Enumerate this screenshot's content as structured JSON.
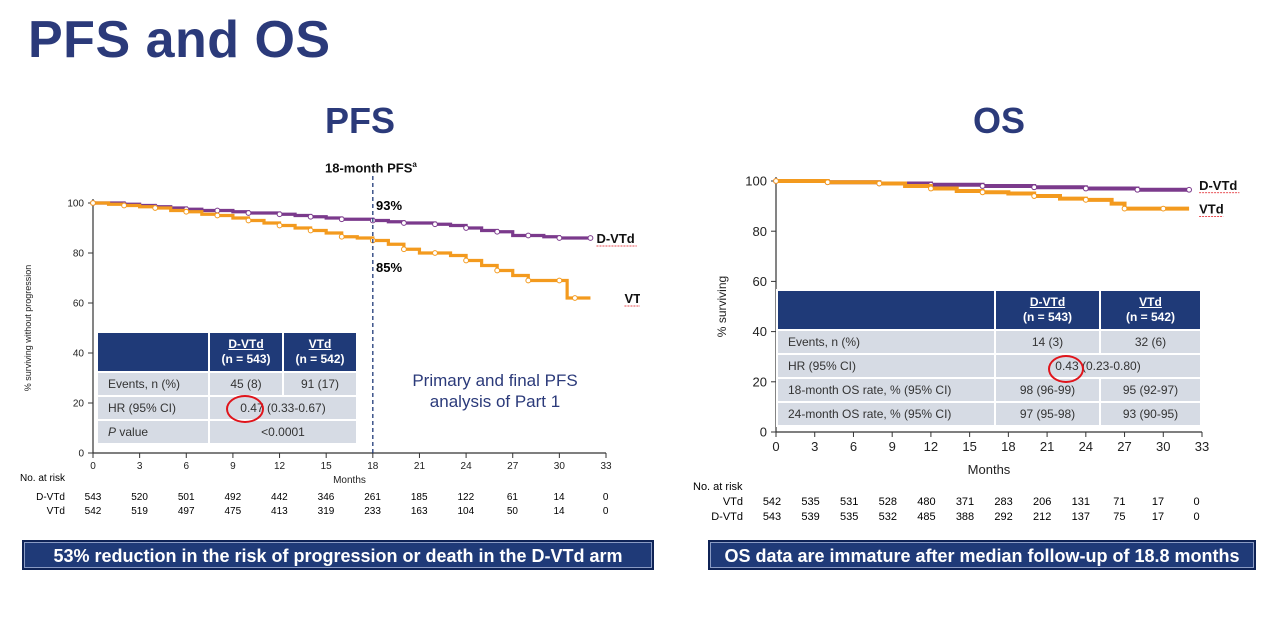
{
  "slide_title": "PFS and OS",
  "banners": {
    "pfs": "53% reduction in the risk of progression or death in the D-VTd arm",
    "os": "OS data are immature after median follow-up of 18.8 months"
  },
  "colors": {
    "navy": "#1f3a78",
    "purple": "#7b3a8c",
    "orange": "#f39a1e",
    "dashed": "#1f3a78",
    "highlight": "#e0141b"
  },
  "pfs": {
    "title": "PFS",
    "note_line1": "Primary and final PFS",
    "note_line2": "analysis of Part 1",
    "marker": {
      "label": "18-month PFS",
      "superscript": "a",
      "dvtd_rate": "93%",
      "vtd_rate": "85%"
    },
    "table": {
      "col1_header1": "D-VTd",
      "col1_header2": "(n = 543)",
      "col2_header1": "VTd",
      "col2_header2": "(n = 542)",
      "rows": [
        {
          "label": "Events, n (%)",
          "c1": "45 (8)",
          "c2": "91 (17)"
        },
        {
          "label": "HR (95% CI)",
          "hr": "0.47",
          "ci": " (0.33-0.67)"
        }
      ],
      "pvalue_label_italic": "P",
      "pvalue_label_rest": " value",
      "pvalue": "<0.0001"
    },
    "risk": {
      "header": "No. at risk",
      "rows": [
        {
          "arm": "D-VTd",
          "counts": [
            "543",
            "520",
            "501",
            "492",
            "442",
            "346",
            "261",
            "185",
            "122",
            "61",
            "14",
            "0"
          ]
        },
        {
          "arm": "VTd",
          "counts": [
            "542",
            "519",
            "497",
            "475",
            "413",
            "319",
            "233",
            "163",
            "104",
            "50",
            "14",
            "0"
          ]
        }
      ]
    }
  },
  "os": {
    "title": "OS",
    "table": {
      "col1_header1": "D-VTd",
      "col1_header2": "(n = 543)",
      "col2_header1": "VTd",
      "col2_header2": "(n = 542)",
      "rows": [
        {
          "label": "Events, n (%)",
          "c1": "14 (3)",
          "c2": "32 (6)"
        },
        {
          "label": "HR (95% CI)",
          "hr": "0.43",
          "ci": " (0.23-0.80)"
        },
        {
          "label": "18-month OS rate, % (95% CI)",
          "c1": "98 (96-99)",
          "c2": "95 (92-97)"
        },
        {
          "label": "24-month OS rate, % (95% CI)",
          "c1": "97 (95-98)",
          "c2": "93 (90-95)"
        }
      ]
    },
    "risk": {
      "header": "No. at risk",
      "rows": [
        {
          "arm": "VTd",
          "counts": [
            "542",
            "535",
            "531",
            "528",
            "480",
            "371",
            "283",
            "206",
            "131",
            "71",
            "17",
            "0"
          ]
        },
        {
          "arm": "D-VTd",
          "counts": [
            "543",
            "539",
            "535",
            "532",
            "485",
            "388",
            "292",
            "212",
            "137",
            "75",
            "17",
            "0"
          ]
        }
      ]
    }
  },
  "chart_data": [
    {
      "type": "line",
      "title": "PFS",
      "xlabel": "Months",
      "ylabel": "% surviving without progression",
      "xlim": [
        0,
        33
      ],
      "ylim": [
        0,
        100
      ],
      "xticks": [
        "0",
        "3",
        "6",
        "9",
        "12",
        "15",
        "18",
        "21",
        "24",
        "27",
        "30",
        "33"
      ],
      "yticks": [
        "0",
        "20",
        "40",
        "60",
        "80",
        "100"
      ],
      "series": [
        {
          "name": "D-VTd",
          "x": [
            0,
            1,
            2,
            3,
            4,
            5,
            6,
            7,
            8,
            9,
            10,
            11,
            12,
            13,
            14,
            15,
            16,
            17,
            18,
            19,
            20,
            21,
            22,
            23,
            24,
            25,
            26,
            27,
            28,
            29,
            30,
            31,
            32
          ],
          "y": [
            100,
            100,
            99.5,
            99,
            98.5,
            98,
            97.5,
            97,
            97,
            96.5,
            96,
            96,
            95.5,
            95,
            94.5,
            94,
            93.5,
            93.5,
            93,
            92.5,
            92,
            92,
            91.5,
            91,
            90,
            89,
            88.5,
            87,
            87,
            86.5,
            86,
            86,
            86
          ]
        },
        {
          "name": "VTd",
          "x": [
            0,
            1,
            2,
            3,
            4,
            5,
            6,
            7,
            8,
            9,
            10,
            11,
            12,
            13,
            14,
            15,
            16,
            17,
            18,
            19,
            20,
            21,
            22,
            23,
            24,
            25,
            26,
            27,
            28,
            29,
            30,
            30.5,
            31,
            32
          ],
          "y": [
            100,
            99.5,
            99,
            98.5,
            98,
            97,
            96.5,
            95.5,
            95,
            94,
            93,
            92,
            91,
            90,
            89,
            88,
            86.5,
            86,
            85,
            83.5,
            81.5,
            80,
            80,
            79,
            77,
            75,
            73,
            71,
            69,
            69,
            69,
            62,
            62,
            62
          ]
        }
      ]
    },
    {
      "type": "line",
      "title": "OS",
      "xlabel": "Months",
      "ylabel": "% surviving",
      "xlim": [
        0,
        33
      ],
      "ylim": [
        0,
        100
      ],
      "xticks": [
        "0",
        "3",
        "6",
        "9",
        "12",
        "15",
        "18",
        "21",
        "24",
        "27",
        "30",
        "33"
      ],
      "yticks": [
        "0",
        "20",
        "40",
        "60",
        "80",
        "100"
      ],
      "series": [
        {
          "name": "D-VTd",
          "x": [
            0,
            2,
            4,
            6,
            8,
            10,
            12,
            14,
            16,
            18,
            20,
            22,
            24,
            26,
            28,
            30,
            32
          ],
          "y": [
            100,
            100,
            99.5,
            99.5,
            99,
            99,
            98.5,
            98.5,
            98,
            98,
            97.5,
            97.5,
            97,
            97,
            96.5,
            96.5,
            96.5
          ]
        },
        {
          "name": "VTd",
          "x": [
            0,
            2,
            4,
            6,
            8,
            10,
            12,
            14,
            16,
            18,
            20,
            22,
            24,
            26,
            27,
            28,
            30,
            32
          ],
          "y": [
            100,
            100,
            99.5,
            99.5,
            99,
            98,
            97,
            96,
            95.5,
            95,
            94,
            93,
            92.5,
            91,
            89,
            89,
            89,
            89
          ]
        }
      ]
    }
  ]
}
